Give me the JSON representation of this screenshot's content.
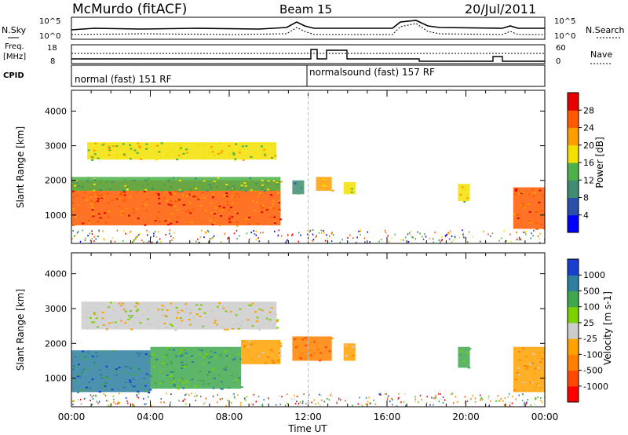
{
  "header": {
    "station": "McMurdo (fitACF)",
    "beam": "Beam 15",
    "date": "20/Jul/2011"
  },
  "noise_panel": {
    "left_label": "N.Sky",
    "right_label": "N.Search",
    "left_ticks": [
      "10^5",
      "10^0"
    ],
    "right_ticks": [
      "10^5",
      "10^0"
    ]
  },
  "freq_panel": {
    "left_label_1": "Freq.",
    "left_label_2": "[MHz]",
    "right_label": "Nave",
    "left_ticks": [
      "18",
      "8"
    ],
    "right_ticks": [
      "60",
      "0"
    ]
  },
  "cpid_panel": {
    "label": "CPID",
    "modes": [
      "normal (fast) 151 RF",
      "normalsound (fast) 157 RF"
    ]
  },
  "x_axis": {
    "label": "Time UT",
    "ticks": [
      "00:00",
      "04:00",
      "08:00",
      "12:00",
      "16:00",
      "20:00",
      "00:00"
    ]
  },
  "colors": {
    "power_scale": [
      "#0000ff",
      "#2a4fa8",
      "#3f8c72",
      "#4db049",
      "#f2e000",
      "#ff9e00",
      "#ff5a00",
      "#e60000"
    ],
    "velocity_scale": [
      "#ff0000",
      "#ff4800",
      "#ff8000",
      "#ffa200",
      "#cccccc",
      "#7bd000",
      "#3fa84f",
      "#2d7fa0",
      "#1a3fd0"
    ]
  },
  "chart_data": [
    {
      "type": "heatmap",
      "panel": "power",
      "ylabel": "Slant Range [km]",
      "xlabel": "Time UT",
      "yticks": [
        "1000",
        "2000",
        "3000",
        "4000"
      ],
      "ylim": [
        180,
        4600
      ],
      "xlim_hours": [
        0,
        24
      ],
      "colorbar_label": "Power [dB]",
      "colorbar_ticks": [
        "28",
        "24",
        "20",
        "16",
        "12",
        "8",
        "4"
      ],
      "colorbar_range": [
        0,
        32
      ],
      "echo_bands": [
        {
          "t": [
            0,
            10.6
          ],
          "range_km": [
            700,
            2000
          ],
          "value": 26
        },
        {
          "t": [
            0,
            10.6
          ],
          "range_km": [
            1700,
            2100
          ],
          "value": 12
        },
        {
          "t": [
            0.8,
            10.4
          ],
          "range_km": [
            2600,
            3100
          ],
          "value": 16
        },
        {
          "t": [
            11.2,
            11.8
          ],
          "range_km": [
            1600,
            2000
          ],
          "value": 10
        },
        {
          "t": [
            12.4,
            13.2
          ],
          "range_km": [
            1700,
            2100
          ],
          "value": 20
        },
        {
          "t": [
            13.8,
            14.4
          ],
          "range_km": [
            1600,
            1950
          ],
          "value": 16
        },
        {
          "t": [
            19.6,
            20.2
          ],
          "range_km": [
            1400,
            1900
          ],
          "value": 16
        },
        {
          "t": [
            22.4,
            24
          ],
          "range_km": [
            600,
            1800
          ],
          "value": 24
        }
      ]
    },
    {
      "type": "heatmap",
      "panel": "velocity",
      "ylabel": "Slant Range [km]",
      "xlabel": "Time UT",
      "yticks": [
        "1000",
        "2000",
        "3000",
        "4000"
      ],
      "ylim": [
        180,
        4600
      ],
      "xlim_hours": [
        0,
        24
      ],
      "colorbar_label": "Velocity [m s-1]",
      "colorbar_ticks": [
        "1000",
        "500",
        "100",
        "25",
        "-25",
        "-100",
        "-500",
        "-1000"
      ],
      "echo_bands": [
        {
          "t": [
            0,
            4.0
          ],
          "range_km": [
            600,
            1800
          ],
          "value": 500
        },
        {
          "t": [
            4.0,
            8.6
          ],
          "range_km": [
            700,
            1900
          ],
          "value": 100
        },
        {
          "t": [
            8.6,
            10.6
          ],
          "range_km": [
            1400,
            2100
          ],
          "value": -100
        },
        {
          "t": [
            0.5,
            10.4
          ],
          "range_km": [
            2400,
            3200
          ],
          "value": -25
        },
        {
          "t": [
            11.2,
            13.2
          ],
          "range_km": [
            1500,
            2200
          ],
          "value": -500
        },
        {
          "t": [
            13.8,
            14.4
          ],
          "range_km": [
            1500,
            2000
          ],
          "value": -100
        },
        {
          "t": [
            19.6,
            20.2
          ],
          "range_km": [
            1300,
            1900
          ],
          "value": 100
        },
        {
          "t": [
            22.4,
            24
          ],
          "range_km": [
            600,
            1900
          ],
          "value": -100
        }
      ]
    }
  ]
}
